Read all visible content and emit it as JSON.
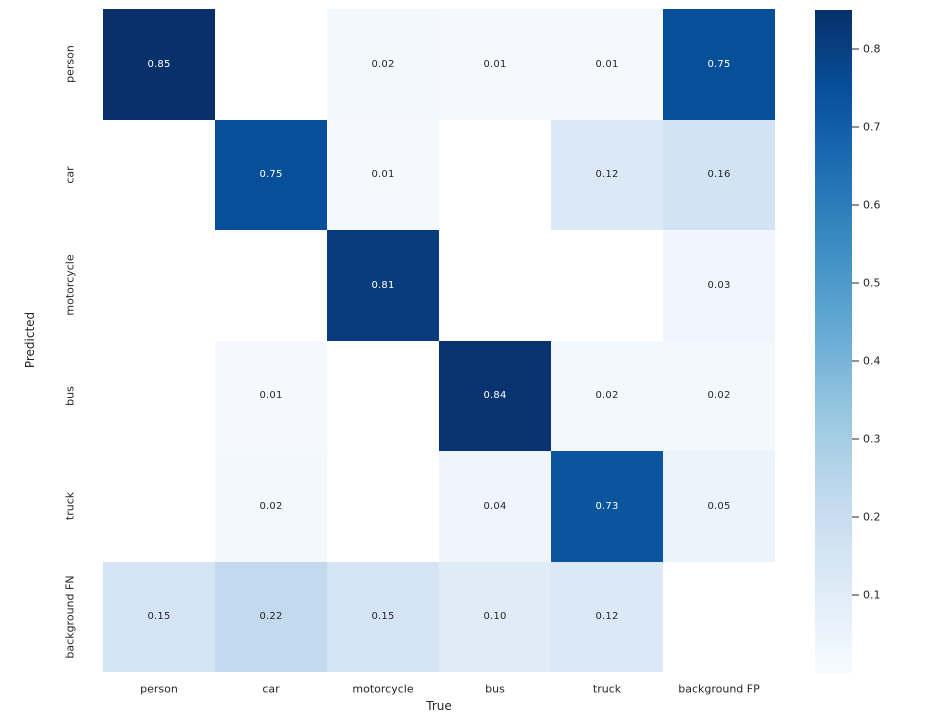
{
  "figure": {
    "background": "#ffffff"
  },
  "chart_data": {
    "type": "heatmap",
    "title": "",
    "xlabel": "True",
    "ylabel": "Predicted",
    "x_categories": [
      "person",
      "car",
      "motorcycle",
      "bus",
      "truck",
      "background FP"
    ],
    "y_categories": [
      "person",
      "car",
      "motorcycle",
      "bus",
      "truck",
      "background FN"
    ],
    "matrix": [
      [
        0.85,
        null,
        0.02,
        0.01,
        0.01,
        0.75
      ],
      [
        null,
        0.75,
        0.01,
        null,
        0.12,
        0.16
      ],
      [
        null,
        null,
        0.81,
        null,
        null,
        0.03
      ],
      [
        null,
        0.01,
        null,
        0.84,
        0.02,
        0.02
      ],
      [
        null,
        0.02,
        null,
        0.04,
        0.73,
        0.05
      ],
      [
        0.15,
        0.22,
        0.15,
        0.1,
        0.12,
        null
      ]
    ],
    "value_format_decimals": 2,
    "vmin": 0,
    "vmax": 0.85,
    "colormap": "Blues",
    "colorbar_ticks": [
      0.1,
      0.2,
      0.3,
      0.4,
      0.5,
      0.6,
      0.7,
      0.8
    ],
    "legend_position": "right-colorbar",
    "grid": false,
    "colors": {
      "max_cell": "#08306b",
      "min_cell": "#f7fbff",
      "blank_cell": "#ffffff",
      "annotation_dark": "#262626",
      "annotation_light": "#ffffff"
    }
  }
}
